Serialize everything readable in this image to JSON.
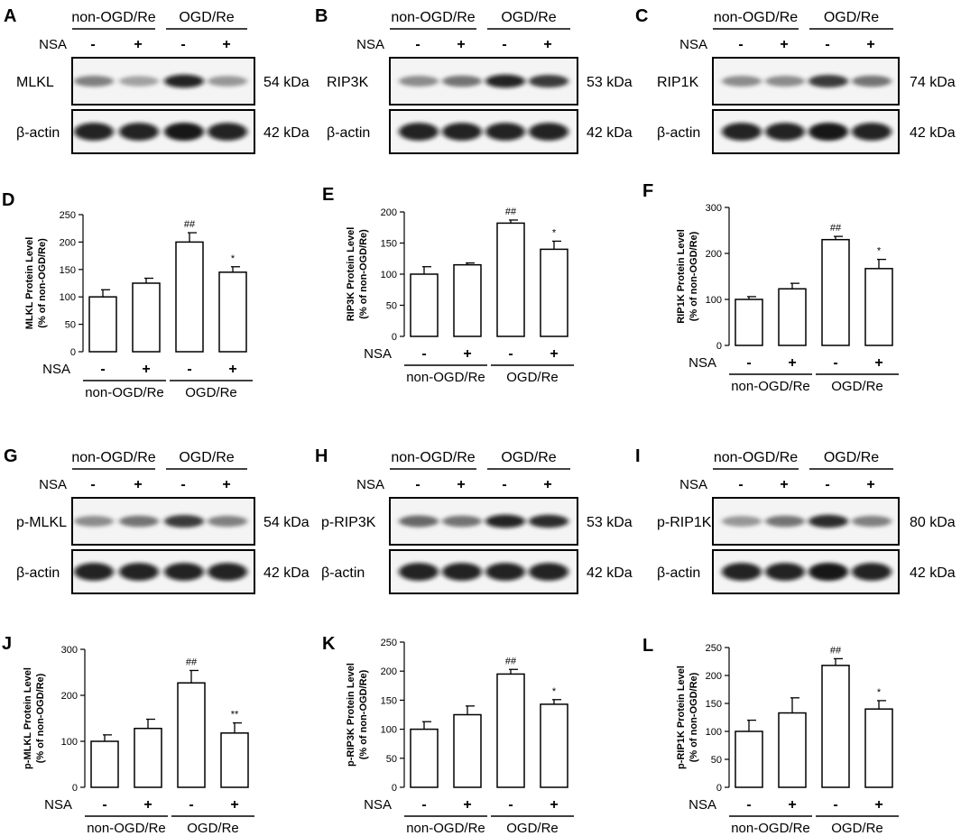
{
  "groups": {
    "control": "non-OGD/Re",
    "treated": "OGD/Re"
  },
  "treatment": {
    "label": "NSA",
    "minus": "-",
    "plus": "+"
  },
  "blots": [
    {
      "letter": "A",
      "target": "MLKL",
      "target_kda": "54 kDa",
      "loading": "β-actin",
      "loading_kda": "42 kDa",
      "target_intensity": [
        0.55,
        0.4,
        0.95,
        0.45
      ],
      "loading_intensity": [
        0.95,
        0.95,
        1.0,
        0.95
      ]
    },
    {
      "letter": "B",
      "target": "RIP3K",
      "target_kda": "53 kDa",
      "loading": "β-actin",
      "loading_kda": "42 kDa",
      "target_intensity": [
        0.5,
        0.6,
        0.95,
        0.85
      ],
      "loading_intensity": [
        0.95,
        0.95,
        0.95,
        0.95
      ]
    },
    {
      "letter": "C",
      "target": "RIP1K",
      "target_kda": "74 kDa",
      "loading": "β-actin",
      "loading_kda": "42 kDa",
      "target_intensity": [
        0.5,
        0.5,
        0.85,
        0.6
      ],
      "loading_intensity": [
        0.95,
        0.95,
        1.0,
        0.95
      ]
    },
    {
      "letter": "G",
      "target": "p-MLKL",
      "target_kda": "54 kDa",
      "loading": "β-actin",
      "loading_kda": "42 kDa",
      "target_intensity": [
        0.5,
        0.6,
        0.85,
        0.55
      ],
      "loading_intensity": [
        0.95,
        0.95,
        0.95,
        0.95
      ]
    },
    {
      "letter": "H",
      "target": "p-RIP3K",
      "target_kda": "53 kDa",
      "loading": "β-actin",
      "loading_kda": "42 kDa",
      "target_intensity": [
        0.65,
        0.6,
        0.95,
        0.9
      ],
      "loading_intensity": [
        0.95,
        0.95,
        0.95,
        0.95
      ]
    },
    {
      "letter": "I",
      "target": "p-RIP1K",
      "target_kda": "80 kDa",
      "loading": "β-actin",
      "loading_kda": "42 kDa",
      "target_intensity": [
        0.45,
        0.6,
        0.9,
        0.55
      ],
      "loading_intensity": [
        0.95,
        0.95,
        1.0,
        0.95
      ]
    }
  ],
  "chart_data": [
    {
      "letter": "D",
      "type": "bar",
      "ylabel": [
        "MLKL Protein Level",
        "(% of non-OGD/Re)"
      ],
      "ylim": [
        0,
        250
      ],
      "yticks": [
        "0",
        "50",
        "100",
        "150",
        "200",
        "250"
      ],
      "categories": [
        "non-OGD/Re NSA-",
        "non-OGD/Re NSA+",
        "OGD/Re NSA-",
        "OGD/Re NSA+"
      ],
      "values": [
        100,
        125,
        200,
        145
      ],
      "errors": [
        13,
        9,
        17,
        10
      ],
      "annotations": [
        "",
        "",
        "##",
        "*"
      ]
    },
    {
      "letter": "E",
      "type": "bar",
      "ylabel": [
        "RIP3K Protein Level",
        "(% of non-OGD/Re)"
      ],
      "ylim": [
        0,
        200
      ],
      "yticks": [
        "0",
        "50",
        "100",
        "150",
        "200"
      ],
      "categories": [
        "non-OGD/Re NSA-",
        "non-OGD/Re NSA+",
        "OGD/Re NSA-",
        "OGD/Re NSA+"
      ],
      "values": [
        100,
        115,
        182,
        140
      ],
      "errors": [
        12,
        3,
        5,
        13
      ],
      "annotations": [
        "",
        "",
        "##",
        "*"
      ]
    },
    {
      "letter": "F",
      "type": "bar",
      "ylabel": [
        "RIP1K Protein Level",
        "(% of non-OGD/Re)"
      ],
      "ylim": [
        0,
        300
      ],
      "yticks": [
        "0",
        "100",
        "200",
        "300"
      ],
      "categories": [
        "non-OGD/Re NSA-",
        "non-OGD/Re NSA+",
        "OGD/Re NSA-",
        "OGD/Re NSA+"
      ],
      "values": [
        100,
        123,
        230,
        167
      ],
      "errors": [
        6,
        12,
        7,
        20
      ],
      "annotations": [
        "",
        "",
        "##",
        "*"
      ]
    },
    {
      "letter": "J",
      "type": "bar",
      "ylabel": [
        "p-MLKL Protein Level",
        "(% of non-OGD/Re)"
      ],
      "ylim": [
        0,
        300
      ],
      "yticks": [
        "0",
        "100",
        "200",
        "300"
      ],
      "categories": [
        "non-OGD/Re NSA-",
        "non-OGD/Re NSA+",
        "OGD/Re NSA-",
        "OGD/Re NSA+"
      ],
      "values": [
        100,
        128,
        227,
        118
      ],
      "errors": [
        14,
        20,
        27,
        22
      ],
      "annotations": [
        "",
        "",
        "##",
        "**"
      ]
    },
    {
      "letter": "K",
      "type": "bar",
      "ylabel": [
        "p-RIP3K Protein Level",
        "(% of non-OGD/Re)"
      ],
      "ylim": [
        0,
        250
      ],
      "yticks": [
        "0",
        "50",
        "100",
        "150",
        "200",
        "250"
      ],
      "categories": [
        "non-OGD/Re NSA-",
        "non-OGD/Re NSA+",
        "OGD/Re NSA-",
        "OGD/Re NSA+"
      ],
      "values": [
        100,
        125,
        195,
        143
      ],
      "errors": [
        13,
        15,
        8,
        8
      ],
      "annotations": [
        "",
        "",
        "##",
        "*"
      ]
    },
    {
      "letter": "L",
      "type": "bar",
      "ylabel": [
        "p-RIP1K Protein Level",
        "(% of non-OGD/Re)"
      ],
      "ylim": [
        0,
        250
      ],
      "yticks": [
        "0",
        "50",
        "100",
        "150",
        "200",
        "250"
      ],
      "categories": [
        "non-OGD/Re NSA-",
        "non-OGD/Re NSA+",
        "OGD/Re NSA-",
        "OGD/Re NSA+"
      ],
      "values": [
        100,
        133,
        218,
        140
      ],
      "errors": [
        20,
        27,
        12,
        15
      ],
      "annotations": [
        "",
        "",
        "##",
        "*"
      ]
    }
  ]
}
